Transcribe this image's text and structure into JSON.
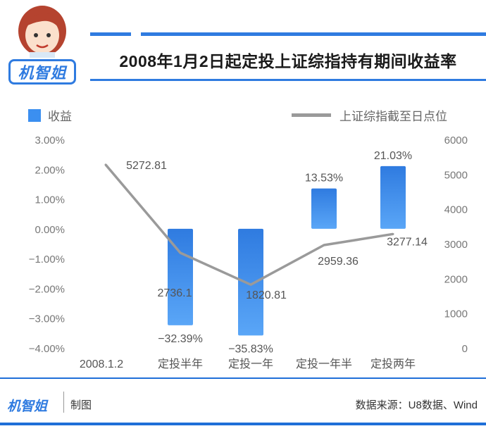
{
  "header": {
    "title": "2008年1月2日起定投上证综指持有期间收益率",
    "logo_text": "机智姐"
  },
  "legend": {
    "bars_label": "收益",
    "line_label": "上证综指截至日点位"
  },
  "chart_data": {
    "type": "bar+line",
    "categories": [
      "2008.1.2",
      "定投半年",
      "定投一年",
      "定投一年半",
      "定投两年"
    ],
    "series": [
      {
        "name": "收益",
        "type": "bar",
        "axis": "left",
        "values": [
          null,
          -32.39,
          -35.83,
          13.53,
          21.03
        ],
        "labels": [
          "",
          "−32.39%",
          "−35.83%",
          "13.53%",
          "21.03%"
        ]
      },
      {
        "name": "上证综指截至日点位",
        "type": "line",
        "axis": "right",
        "values": [
          5272.81,
          2736.1,
          1820.81,
          2959.36,
          3277.14
        ],
        "labels": [
          "5272.81",
          "2736.1",
          "1820.81",
          "2959.36",
          "3277.14"
        ]
      }
    ],
    "left_axis": {
      "min": -4,
      "max": 3,
      "ticks": [
        "3.00%",
        "2.00%",
        "1.00%",
        "0.00%",
        "−1.00%",
        "−2.00%",
        "−3.00%",
        "−4.00%"
      ]
    },
    "right_axis": {
      "min": 0,
      "max": 6000,
      "ticks": [
        "6000",
        "5000",
        "4000",
        "3000",
        "2000",
        "1000",
        "0"
      ]
    },
    "colors": {
      "bar": "#3b8ff0",
      "line": "#9a9a9a"
    }
  },
  "footer": {
    "logo_text": "机智姐",
    "made": "制图",
    "source": "数据来源：U8数据、Wind"
  }
}
